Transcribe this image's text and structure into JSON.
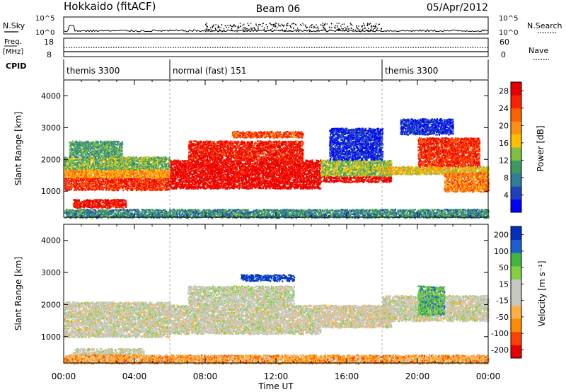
{
  "header": {
    "station": "Hokkaido (fitACF)",
    "beam": "Beam 06",
    "date": "05/Apr/2012"
  },
  "summary_panels": {
    "nsky_label": "N.Sky",
    "nsearch_label": "N.Search",
    "noise_ticks_left": [
      "10^5",
      "10^0"
    ],
    "noise_ticks_right": [
      "10^5",
      "10^0"
    ],
    "freq_label": "Freq.",
    "freq_unit": "[MHz]",
    "freq_ticks": [
      "18",
      "8"
    ],
    "nave_label": "Nave",
    "nave_ticks": [
      "60",
      "0"
    ],
    "cpid_label": "CPID",
    "cpid_segments": [
      {
        "name": "themis 3300",
        "start_hour": 0,
        "end_hour": 6
      },
      {
        "name": "normal (fast) 151",
        "start_hour": 6,
        "end_hour": 18
      },
      {
        "name": "themis 3300",
        "start_hour": 18,
        "end_hour": 24
      }
    ]
  },
  "chart_data": [
    {
      "type": "heatmap",
      "name": "Power",
      "ylabel": "Slant Range [km]",
      "xlabel": "",
      "ylim": [
        180,
        4500
      ],
      "xlim": [
        0,
        24
      ],
      "yticks": [
        "1000",
        "2000",
        "3000",
        "4000"
      ],
      "xticks": [
        "00:00",
        "04:00",
        "08:00",
        "12:00",
        "16:00",
        "20:00",
        "00:00"
      ],
      "colorbar_label": "Power [dB]",
      "colorbar_ticks": [
        "28",
        "24",
        "20",
        "16",
        "12",
        "8",
        "4"
      ],
      "colorbar_range": [
        0,
        30
      ],
      "colors": [
        "#0000ff",
        "#1e3fbf",
        "#2e7d9a",
        "#3c9a60",
        "#80c040",
        "#ffc000",
        "#ff9010",
        "#ff6000",
        "#ff2000",
        "#e80000"
      ],
      "scatter_regions": [
        {
          "t0": 0.0,
          "t1": 6.0,
          "r0": 1050,
          "r1": 1450,
          "level": 0.85
        },
        {
          "t0": 0.0,
          "t1": 6.0,
          "r0": 1450,
          "r1": 1700,
          "level": 0.65
        },
        {
          "t0": 0.0,
          "t1": 6.0,
          "r0": 1700,
          "r1": 2100,
          "level": 0.42
        },
        {
          "t0": 0.3,
          "t1": 3.3,
          "r0": 2100,
          "r1": 2600,
          "level": 0.35
        },
        {
          "t0": 0.5,
          "t1": 3.5,
          "r0": 500,
          "r1": 760,
          "level": 0.92
        },
        {
          "t0": 6.0,
          "t1": 14.5,
          "r0": 1100,
          "r1": 2000,
          "level": 0.95
        },
        {
          "t0": 7.0,
          "t1": 13.5,
          "r0": 2000,
          "r1": 2600,
          "level": 0.9
        },
        {
          "t0": 9.5,
          "t1": 13.5,
          "r0": 2700,
          "r1": 2900,
          "level": 0.8
        },
        {
          "t0": 14.5,
          "t1": 18.5,
          "r0": 1300,
          "r1": 1500,
          "level": 0.95
        },
        {
          "t0": 14.5,
          "t1": 18.5,
          "r0": 1500,
          "r1": 2000,
          "level": 0.45
        },
        {
          "t0": 15.0,
          "t1": 18.0,
          "r0": 2000,
          "r1": 3000,
          "level": 0.1
        },
        {
          "t0": 18.0,
          "t1": 24.0,
          "r0": 1550,
          "r1": 1800,
          "level": 0.55
        },
        {
          "t0": 19.0,
          "t1": 22.0,
          "r0": 2800,
          "r1": 3300,
          "level": 0.1
        },
        {
          "t0": 20.0,
          "t1": 23.5,
          "r0": 1800,
          "r1": 2700,
          "level": 0.85
        },
        {
          "t0": 21.5,
          "t1": 24.0,
          "r0": 1000,
          "r1": 1600,
          "level": 0.7
        },
        {
          "t0": 0.0,
          "t1": 24.0,
          "r0": 180,
          "r1": 450,
          "level": 0.3
        }
      ]
    },
    {
      "type": "heatmap",
      "name": "Velocity",
      "ylabel": "Slant Range [km]",
      "xlabel": "Time UT",
      "ylim": [
        180,
        4500
      ],
      "xlim": [
        0,
        24
      ],
      "yticks": [
        "1000",
        "2000",
        "3000",
        "4000"
      ],
      "xticks": [
        "00:00",
        "04:00",
        "08:00",
        "12:00",
        "16:00",
        "20:00",
        "00:00"
      ],
      "colorbar_label": "Velocity [m s⁻¹]",
      "colorbar_ticks": [
        "200",
        "100",
        "50",
        "15",
        "-15",
        "-50",
        "-100",
        "-200"
      ],
      "colorbar_range": [
        -250,
        250
      ],
      "colors": [
        "#e80000",
        "#ff4000",
        "#ff8c00",
        "#ffb040",
        "#c8c8c0",
        "#c8c8c0",
        "#80d040",
        "#40b840",
        "#1e5fcf",
        "#0030c0"
      ],
      "scatter_regions": [
        {
          "t0": 0.0,
          "t1": 6.0,
          "r0": 1000,
          "r1": 2100,
          "level": 0.5
        },
        {
          "t0": 6.0,
          "t1": 14.5,
          "r0": 1100,
          "r1": 2000,
          "level": 0.5
        },
        {
          "t0": 7.0,
          "t1": 13.0,
          "r0": 2000,
          "r1": 2600,
          "level": 0.52
        },
        {
          "t0": 10.0,
          "t1": 13.0,
          "r0": 2750,
          "r1": 2950,
          "level": 0.97
        },
        {
          "t0": 14.5,
          "t1": 18.5,
          "r0": 1300,
          "r1": 2000,
          "level": 0.48
        },
        {
          "t0": 18.0,
          "t1": 24.0,
          "r0": 1500,
          "r1": 2300,
          "level": 0.5
        },
        {
          "t0": 20.0,
          "t1": 21.5,
          "r0": 1700,
          "r1": 2600,
          "level": 0.72
        },
        {
          "t0": 0.5,
          "t1": 4.5,
          "r0": 450,
          "r1": 650,
          "level": 0.5
        },
        {
          "t0": 0.0,
          "t1": 24.0,
          "r0": 180,
          "r1": 450,
          "level": 0.3
        }
      ]
    }
  ]
}
